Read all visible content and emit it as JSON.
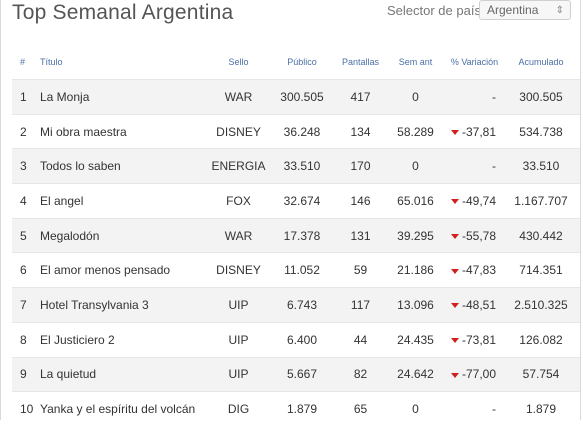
{
  "header": {
    "title": "Top Semanal Argentina",
    "selector_label": "Selector de país",
    "selector_value": "Argentina"
  },
  "columns": [
    "#",
    "Título",
    "Sello",
    "Público",
    "Pantallas",
    "Sem ant",
    "% Variación",
    "Acumulado"
  ],
  "rows": [
    {
      "rank": "1",
      "title": "La Monja",
      "sello": "WAR",
      "publico": "300.505",
      "pantallas": "417",
      "sem_ant": "0",
      "variacion": "-",
      "trend": "none",
      "acumulado": "300.505"
    },
    {
      "rank": "2",
      "title": "Mi obra maestra",
      "sello": "DISNEY",
      "publico": "36.248",
      "pantallas": "134",
      "sem_ant": "58.289",
      "variacion": "-37,81",
      "trend": "down",
      "acumulado": "534.738"
    },
    {
      "rank": "3",
      "title": "Todos lo saben",
      "sello": "ENERGIA",
      "publico": "33.510",
      "pantallas": "170",
      "sem_ant": "0",
      "variacion": "-",
      "trend": "none",
      "acumulado": "33.510"
    },
    {
      "rank": "4",
      "title": "El angel",
      "sello": "FOX",
      "publico": "32.674",
      "pantallas": "146",
      "sem_ant": "65.016",
      "variacion": "-49,74",
      "trend": "down",
      "acumulado": "1.167.707"
    },
    {
      "rank": "5",
      "title": "Megalodón",
      "sello": "WAR",
      "publico": "17.378",
      "pantallas": "131",
      "sem_ant": "39.295",
      "variacion": "-55,78",
      "trend": "down",
      "acumulado": "430.442"
    },
    {
      "rank": "6",
      "title": "El amor menos pensado",
      "sello": "DISNEY",
      "publico": "11.052",
      "pantallas": "59",
      "sem_ant": "21.186",
      "variacion": "-47,83",
      "trend": "down",
      "acumulado": "714.351"
    },
    {
      "rank": "7",
      "title": "Hotel Transylvania 3",
      "sello": "UIP",
      "publico": "6.743",
      "pantallas": "117",
      "sem_ant": "13.096",
      "variacion": "-48,51",
      "trend": "down",
      "acumulado": "2.510.325"
    },
    {
      "rank": "8",
      "title": "El Justiciero 2",
      "sello": "UIP",
      "publico": "6.400",
      "pantallas": "44",
      "sem_ant": "24.435",
      "variacion": "-73,81",
      "trend": "down",
      "acumulado": "126.082"
    },
    {
      "rank": "9",
      "title": "La quietud",
      "sello": "UIP",
      "publico": "5.667",
      "pantallas": "82",
      "sem_ant": "24.642",
      "variacion": "-77,00",
      "trend": "down",
      "acumulado": "57.754"
    },
    {
      "rank": "10",
      "title": "Yanka y el espíritu del volcán",
      "sello": "DIG",
      "publico": "1.879",
      "pantallas": "65",
      "sem_ant": "0",
      "variacion": "-",
      "trend": "none",
      "acumulado": "1.879"
    }
  ],
  "colors": {
    "header_text": "#4a6fa5",
    "trend_down": "#d21f1f",
    "stripe": "#f3f3f3"
  },
  "icons": {
    "trend_down": "caret-down-icon",
    "select": "up-down-chevron-icon"
  }
}
